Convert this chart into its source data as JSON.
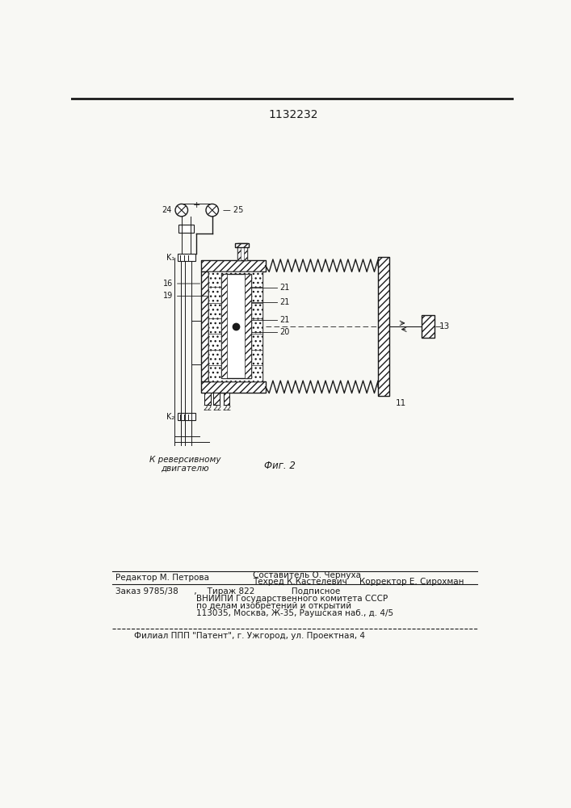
{
  "title": "1132232",
  "fig_label": "Фиг. 2",
  "caption_text": "К реверсивному\nдвигателю",
  "bg_color": "#f8f8f4",
  "order_line": "Заказ 9785/38      ,    Тираж 822              Подписное",
  "vniiipi_line": "ВНИИПИ Государственного комитета СССР",
  "po_delam_line": "по делам изобретений и открытий",
  "address_line": "113035, Москва, Ж-35, Раушская наб., д. 4/5",
  "filial_line": "Филиал ППП \"Патент\", г. Ужгород, ул. Проектная, 4"
}
